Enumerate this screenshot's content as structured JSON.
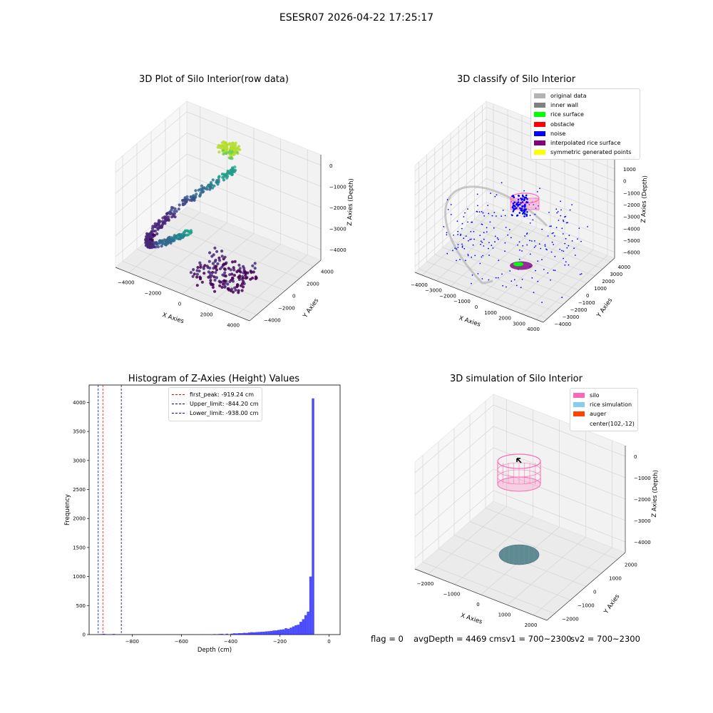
{
  "suptitle": "ESESR07 2026-04-22 17:25:17",
  "panels": {
    "raw": {
      "title": "3D Plot of Silo Interior(row data)",
      "xlabel": "X Axies",
      "ylabel": "Y Axies",
      "zlabel": "Z Axies (Depth)",
      "xticks": [
        "−4000",
        "−2000",
        "0",
        "2000",
        "4000"
      ],
      "yticks": [
        "−4000",
        "−2000",
        "0",
        "2000",
        "4000"
      ],
      "zticks": [
        "0",
        "−1000",
        "−2000",
        "−3000",
        "−4000"
      ]
    },
    "classify": {
      "title": "3D classify of Silo Interior",
      "xlabel": "X Axies",
      "ylabel": "Y Axies",
      "zlabel": "Z Axies (Depth)",
      "xticks": [
        "−4000",
        "−3000",
        "−2000",
        "−1000",
        "0",
        "1000",
        "2000",
        "3000",
        "4000"
      ],
      "yticks": [
        "−4000",
        "−3000",
        "−2000",
        "−1000",
        "0",
        "1000",
        "2000",
        "3000",
        "4000"
      ],
      "zticks": [
        "2000",
        "1000",
        "0",
        "−1000",
        "−2000",
        "−3000",
        "−4000",
        "−5000",
        "−6000"
      ],
      "legend": [
        {
          "label": "original data",
          "color": "#b3b3b3"
        },
        {
          "label": "inner wall",
          "color": "#808080"
        },
        {
          "label": "rice surface",
          "color": "#00ff00"
        },
        {
          "label": "obstacle",
          "color": "#ff0000"
        },
        {
          "label": "noise",
          "color": "#0000ff"
        },
        {
          "label": "interpolated rice surface",
          "color": "#800080"
        },
        {
          "label": "symmetric generated points",
          "color": "#ffff00"
        }
      ]
    },
    "histogram": {
      "title": "Histogram of Z-Axies (Height) Values",
      "legend": [
        {
          "label": "first_peak: -919.24 cm",
          "color": "#ff0000"
        },
        {
          "label": "Upper_limit: -844.20 cm",
          "color": "#00008b"
        },
        {
          "label": "Lower_limit: -938.00 cm",
          "color": "#0000ff"
        }
      ]
    },
    "simulation": {
      "title": "3D simulation of Silo Interior",
      "xlabel": "X Axies",
      "ylabel": "Y Axies",
      "zlabel": "Z Axies (Depth)",
      "xticks": [
        "−2000",
        "−1000",
        "0",
        "1000",
        "2000"
      ],
      "yticks": [
        "−2000",
        "−1000",
        "0",
        "1000",
        "2000"
      ],
      "zticks": [
        "0",
        "−1000",
        "−2000",
        "−3000",
        "−4000"
      ],
      "legend": [
        {
          "label": "silo",
          "color": "#ff69b4"
        },
        {
          "label": "rice simulation",
          "color": "#87ceeb"
        },
        {
          "label": "auger",
          "color": "#ff4500"
        },
        {
          "label": "center(102,-12)",
          "color": ""
        }
      ]
    }
  },
  "status": {
    "flag": "flag = 0",
    "avg": "avgDepth = 4469 cmsv1 = 700~2300",
    "sv2": "sv2 = 700~2300"
  },
  "chart_data": {
    "type": "bar",
    "title": "Histogram of Z-Axies (Height) Values",
    "xlabel": "Depth (cm)",
    "ylabel": "Frequency",
    "xlim": [
      -975,
      45
    ],
    "ylim": [
      0,
      4300
    ],
    "xticks": [
      -800,
      -600,
      -400,
      -200,
      0
    ],
    "yticks": [
      0,
      500,
      1000,
      1500,
      2000,
      2500,
      3000,
      3500,
      4000
    ],
    "bin_width": 10,
    "bins": [
      {
        "x": -940,
        "y": 5
      },
      {
        "x": -930,
        "y": 8
      },
      {
        "x": -920,
        "y": 12
      },
      {
        "x": -910,
        "y": 6
      },
      {
        "x": -890,
        "y": 4
      },
      {
        "x": -880,
        "y": 10
      },
      {
        "x": -850,
        "y": 3
      },
      {
        "x": -800,
        "y": 4
      },
      {
        "x": -770,
        "y": 3
      },
      {
        "x": -720,
        "y": 4
      },
      {
        "x": -700,
        "y": 3
      },
      {
        "x": -650,
        "y": 3
      },
      {
        "x": -600,
        "y": 4
      },
      {
        "x": -570,
        "y": 4
      },
      {
        "x": -520,
        "y": 5
      },
      {
        "x": -500,
        "y": 6
      },
      {
        "x": -470,
        "y": 8
      },
      {
        "x": -450,
        "y": 10
      },
      {
        "x": -440,
        "y": 12
      },
      {
        "x": -420,
        "y": 14
      },
      {
        "x": -400,
        "y": 16
      },
      {
        "x": -390,
        "y": 22
      },
      {
        "x": -380,
        "y": 20
      },
      {
        "x": -370,
        "y": 25
      },
      {
        "x": -360,
        "y": 24
      },
      {
        "x": -350,
        "y": 30
      },
      {
        "x": -340,
        "y": 28
      },
      {
        "x": -330,
        "y": 35
      },
      {
        "x": -320,
        "y": 40
      },
      {
        "x": -310,
        "y": 38
      },
      {
        "x": -300,
        "y": 42
      },
      {
        "x": -290,
        "y": 45
      },
      {
        "x": -280,
        "y": 48
      },
      {
        "x": -270,
        "y": 50
      },
      {
        "x": -260,
        "y": 55
      },
      {
        "x": -250,
        "y": 58
      },
      {
        "x": -240,
        "y": 62
      },
      {
        "x": -230,
        "y": 70
      },
      {
        "x": -220,
        "y": 72
      },
      {
        "x": -210,
        "y": 80
      },
      {
        "x": -200,
        "y": 85
      },
      {
        "x": -190,
        "y": 90
      },
      {
        "x": -180,
        "y": 110
      },
      {
        "x": -170,
        "y": 100
      },
      {
        "x": -160,
        "y": 120
      },
      {
        "x": -150,
        "y": 140
      },
      {
        "x": -140,
        "y": 160
      },
      {
        "x": -130,
        "y": 170
      },
      {
        "x": -120,
        "y": 220
      },
      {
        "x": -110,
        "y": 265
      },
      {
        "x": -100,
        "y": 335
      },
      {
        "x": -90,
        "y": 395
      },
      {
        "x": -80,
        "y": 1000
      },
      {
        "x": -70,
        "y": 4070
      }
    ],
    "vlines": [
      {
        "name": "first_peak",
        "x": -919.24,
        "color": "#ff0000"
      },
      {
        "name": "Upper_limit",
        "x": -844.2,
        "color": "#00008b"
      },
      {
        "name": "Lower_limit",
        "x": -938.0,
        "color": "#0000ff"
      }
    ]
  }
}
